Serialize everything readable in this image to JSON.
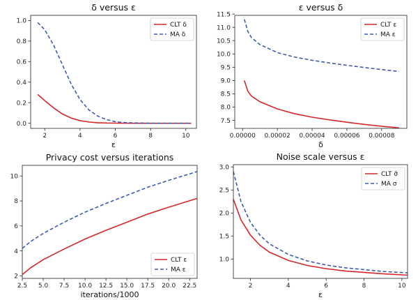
{
  "colors": {
    "clt": "#d62728",
    "ma": "#3b5bb5"
  },
  "chart_data": [
    {
      "type": "line",
      "title": "δ versus ε",
      "xlabel": "ε",
      "ylabel": "",
      "xlim": [
        1.2,
        10.6
      ],
      "ylim": [
        -0.05,
        1.05
      ],
      "xticks": [
        2,
        4,
        6,
        8,
        10
      ],
      "yticks": [
        0.0,
        0.2,
        0.4,
        0.6,
        0.8,
        1.0
      ],
      "ytick_labels": [
        "0.0",
        "0.2",
        "0.4",
        "0.6",
        "0.8",
        "1.0"
      ],
      "legend": "top-right",
      "series": [
        {
          "name": "CLT δ",
          "style": "solid",
          "color": "#d62728",
          "x": [
            1.6,
            2.0,
            2.5,
            3.0,
            3.5,
            4.0,
            4.5,
            5.0,
            5.5,
            6.0,
            7.0,
            8.0,
            10.3
          ],
          "y": [
            0.28,
            0.22,
            0.15,
            0.09,
            0.05,
            0.025,
            0.012,
            0.005,
            0.002,
            0.001,
            0.0,
            0.0,
            0.0
          ]
        },
        {
          "name": "MA δ",
          "style": "dashed",
          "color": "#3b5bb5",
          "x": [
            1.6,
            2.0,
            2.5,
            3.0,
            3.5,
            4.0,
            4.5,
            5.0,
            5.5,
            6.0,
            6.5,
            7.0,
            8.0,
            10.3
          ],
          "y": [
            0.98,
            0.91,
            0.76,
            0.57,
            0.38,
            0.23,
            0.13,
            0.07,
            0.035,
            0.015,
            0.007,
            0.003,
            0.0,
            0.0
          ]
        }
      ]
    },
    {
      "type": "line",
      "title": "ε versus δ",
      "xlabel": "δ",
      "ylabel": "",
      "xlim": [
        -4.5e-06,
        9.45e-05
      ],
      "ylim": [
        7.2,
        11.45
      ],
      "xticks": [
        0,
        2e-05,
        4e-05,
        6e-05,
        8e-05
      ],
      "xtick_labels": [
        "0.00000",
        "0.00002",
        "0.00004",
        "0.00006",
        "0.00008"
      ],
      "yticks": [
        7.5,
        8.0,
        8.5,
        9.0,
        9.5,
        10.0,
        10.5,
        11.0,
        11.5
      ],
      "ytick_labels": [
        "7.5",
        "8.0",
        "8.5",
        "9.0",
        "9.5",
        "10.0",
        "10.5",
        "11.0",
        "11.5"
      ],
      "legend": "top-right",
      "series": [
        {
          "name": "CLT ε",
          "style": "solid",
          "color": "#d62728",
          "x": [
            1e-06,
            3e-06,
            5e-06,
            1e-05,
            2e-05,
            3e-05,
            4e-05,
            5e-05,
            6e-05,
            7e-05,
            8e-05,
            9e-05
          ],
          "y": [
            9.0,
            8.6,
            8.42,
            8.2,
            7.93,
            7.75,
            7.62,
            7.52,
            7.43,
            7.35,
            7.28,
            7.22
          ]
        },
        {
          "name": "MA ε",
          "style": "dashed",
          "color": "#3b5bb5",
          "x": [
            1e-06,
            3e-06,
            5e-06,
            1e-05,
            2e-05,
            3e-05,
            4e-05,
            5e-05,
            6e-05,
            7e-05,
            8e-05,
            9e-05
          ],
          "y": [
            11.3,
            10.85,
            10.62,
            10.35,
            10.05,
            9.88,
            9.76,
            9.66,
            9.57,
            9.49,
            9.41,
            9.34
          ]
        }
      ]
    },
    {
      "type": "line",
      "title": "Privacy cost versus iterations",
      "xlabel": "iterations/1000",
      "ylabel": "",
      "xlim": [
        2.5,
        23.4
      ],
      "ylim": [
        1.8,
        10.85
      ],
      "xticks": [
        2.5,
        5.0,
        7.5,
        10.0,
        12.5,
        15.0,
        17.5,
        20.0,
        22.5
      ],
      "xtick_labels": [
        "2.5",
        "5.0",
        "7.5",
        "10.0",
        "12.5",
        "15.0",
        "17.5",
        "20.0",
        "22.5"
      ],
      "yticks": [
        2,
        4,
        6,
        8,
        10
      ],
      "legend": "bottom-right",
      "series": [
        {
          "name": "CLT ε",
          "style": "solid",
          "color": "#d62728",
          "x": [
            2.5,
            3.5,
            5.0,
            7.5,
            10.0,
            12.5,
            15.0,
            17.5,
            20.0,
            23.4
          ],
          "y": [
            2.1,
            2.65,
            3.3,
            4.15,
            4.95,
            5.65,
            6.3,
            6.95,
            7.5,
            8.2
          ]
        },
        {
          "name": "MA ε",
          "style": "dashed",
          "color": "#3b5bb5",
          "x": [
            2.5,
            3.5,
            5.0,
            7.5,
            10.0,
            12.5,
            15.0,
            17.5,
            20.0,
            23.4
          ],
          "y": [
            4.2,
            4.75,
            5.4,
            6.3,
            7.1,
            7.8,
            8.45,
            9.1,
            9.65,
            10.35
          ]
        }
      ]
    },
    {
      "type": "line",
      "title": "Noise scale versus ε",
      "xlabel": "ε",
      "ylabel": "",
      "xlim": [
        1.1,
        10.3
      ],
      "ylim": [
        0.58,
        3.05
      ],
      "xticks": [
        2,
        4,
        6,
        8,
        10
      ],
      "yticks": [
        1.0,
        1.5,
        2.0,
        2.5,
        3.0
      ],
      "ytick_labels": [
        "1.0",
        "1.5",
        "2.0",
        "2.5",
        "3.0"
      ],
      "legend": "top-right",
      "series": [
        {
          "name": "CLT σ̃",
          "style": "solid",
          "color": "#d62728",
          "x": [
            1.1,
            1.5,
            2.0,
            2.5,
            3.0,
            4.0,
            5.0,
            6.0,
            7.0,
            8.0,
            9.0,
            10.3
          ],
          "y": [
            2.3,
            1.85,
            1.52,
            1.3,
            1.15,
            0.97,
            0.86,
            0.79,
            0.74,
            0.71,
            0.68,
            0.65
          ]
        },
        {
          "name": "MA σ",
          "style": "dashed",
          "color": "#3b5bb5",
          "x": [
            1.1,
            1.5,
            2.0,
            2.5,
            3.0,
            4.0,
            5.0,
            6.0,
            7.0,
            8.0,
            9.0,
            10.3
          ],
          "y": [
            2.9,
            2.25,
            1.8,
            1.52,
            1.33,
            1.1,
            0.96,
            0.87,
            0.81,
            0.77,
            0.73,
            0.7
          ]
        }
      ]
    }
  ]
}
